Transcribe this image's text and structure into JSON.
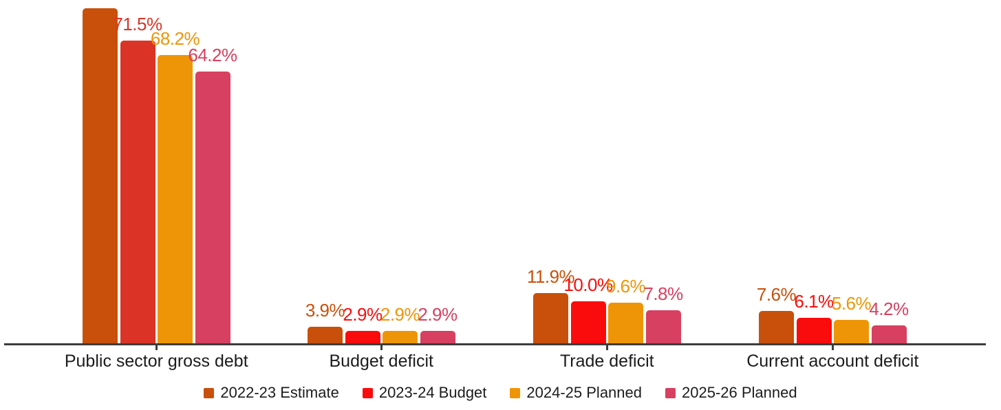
{
  "chart_data": {
    "type": "bar",
    "title": "",
    "unit": "%",
    "categories": [
      "Public sector gross debt",
      "Budget deficit",
      "Trade deficit",
      "Current account deficit"
    ],
    "series": [
      {
        "name": "2022-23 Estimate",
        "color": "#C8500A",
        "values": [
          79.2,
          3.9,
          11.9,
          7.6
        ],
        "labels": [
          "",
          "3.9%",
          "11.9%",
          "7.6%"
        ]
      },
      {
        "name": "2023-24 Budget",
        "color": "#FB0C0C",
        "color_overrides": {
          "0": "#DB3426"
        },
        "values": [
          71.5,
          2.9,
          10.0,
          6.1
        ],
        "labels": [
          "71.5%",
          "2.9%",
          "10.0%",
          "6.1%"
        ]
      },
      {
        "name": "2024-25 Planned",
        "color": "#EE9507",
        "values": [
          68.2,
          2.9,
          9.6,
          5.6
        ],
        "labels": [
          "68.2%",
          "2.9%",
          "9.6%",
          "5.6%"
        ]
      },
      {
        "name": "2025-26 Planned",
        "color": "#D74060",
        "values": [
          64.2,
          2.9,
          7.8,
          4.2
        ],
        "labels": [
          "64.2%",
          "2.9%",
          "7.8%",
          "4.2%"
        ]
      }
    ],
    "value_axis": {
      "visible": false,
      "min": 0
    },
    "gridlines": false,
    "legend_position": "bottom",
    "axis_color": "#3C3C3C",
    "text_color": "#1C1C1C"
  }
}
